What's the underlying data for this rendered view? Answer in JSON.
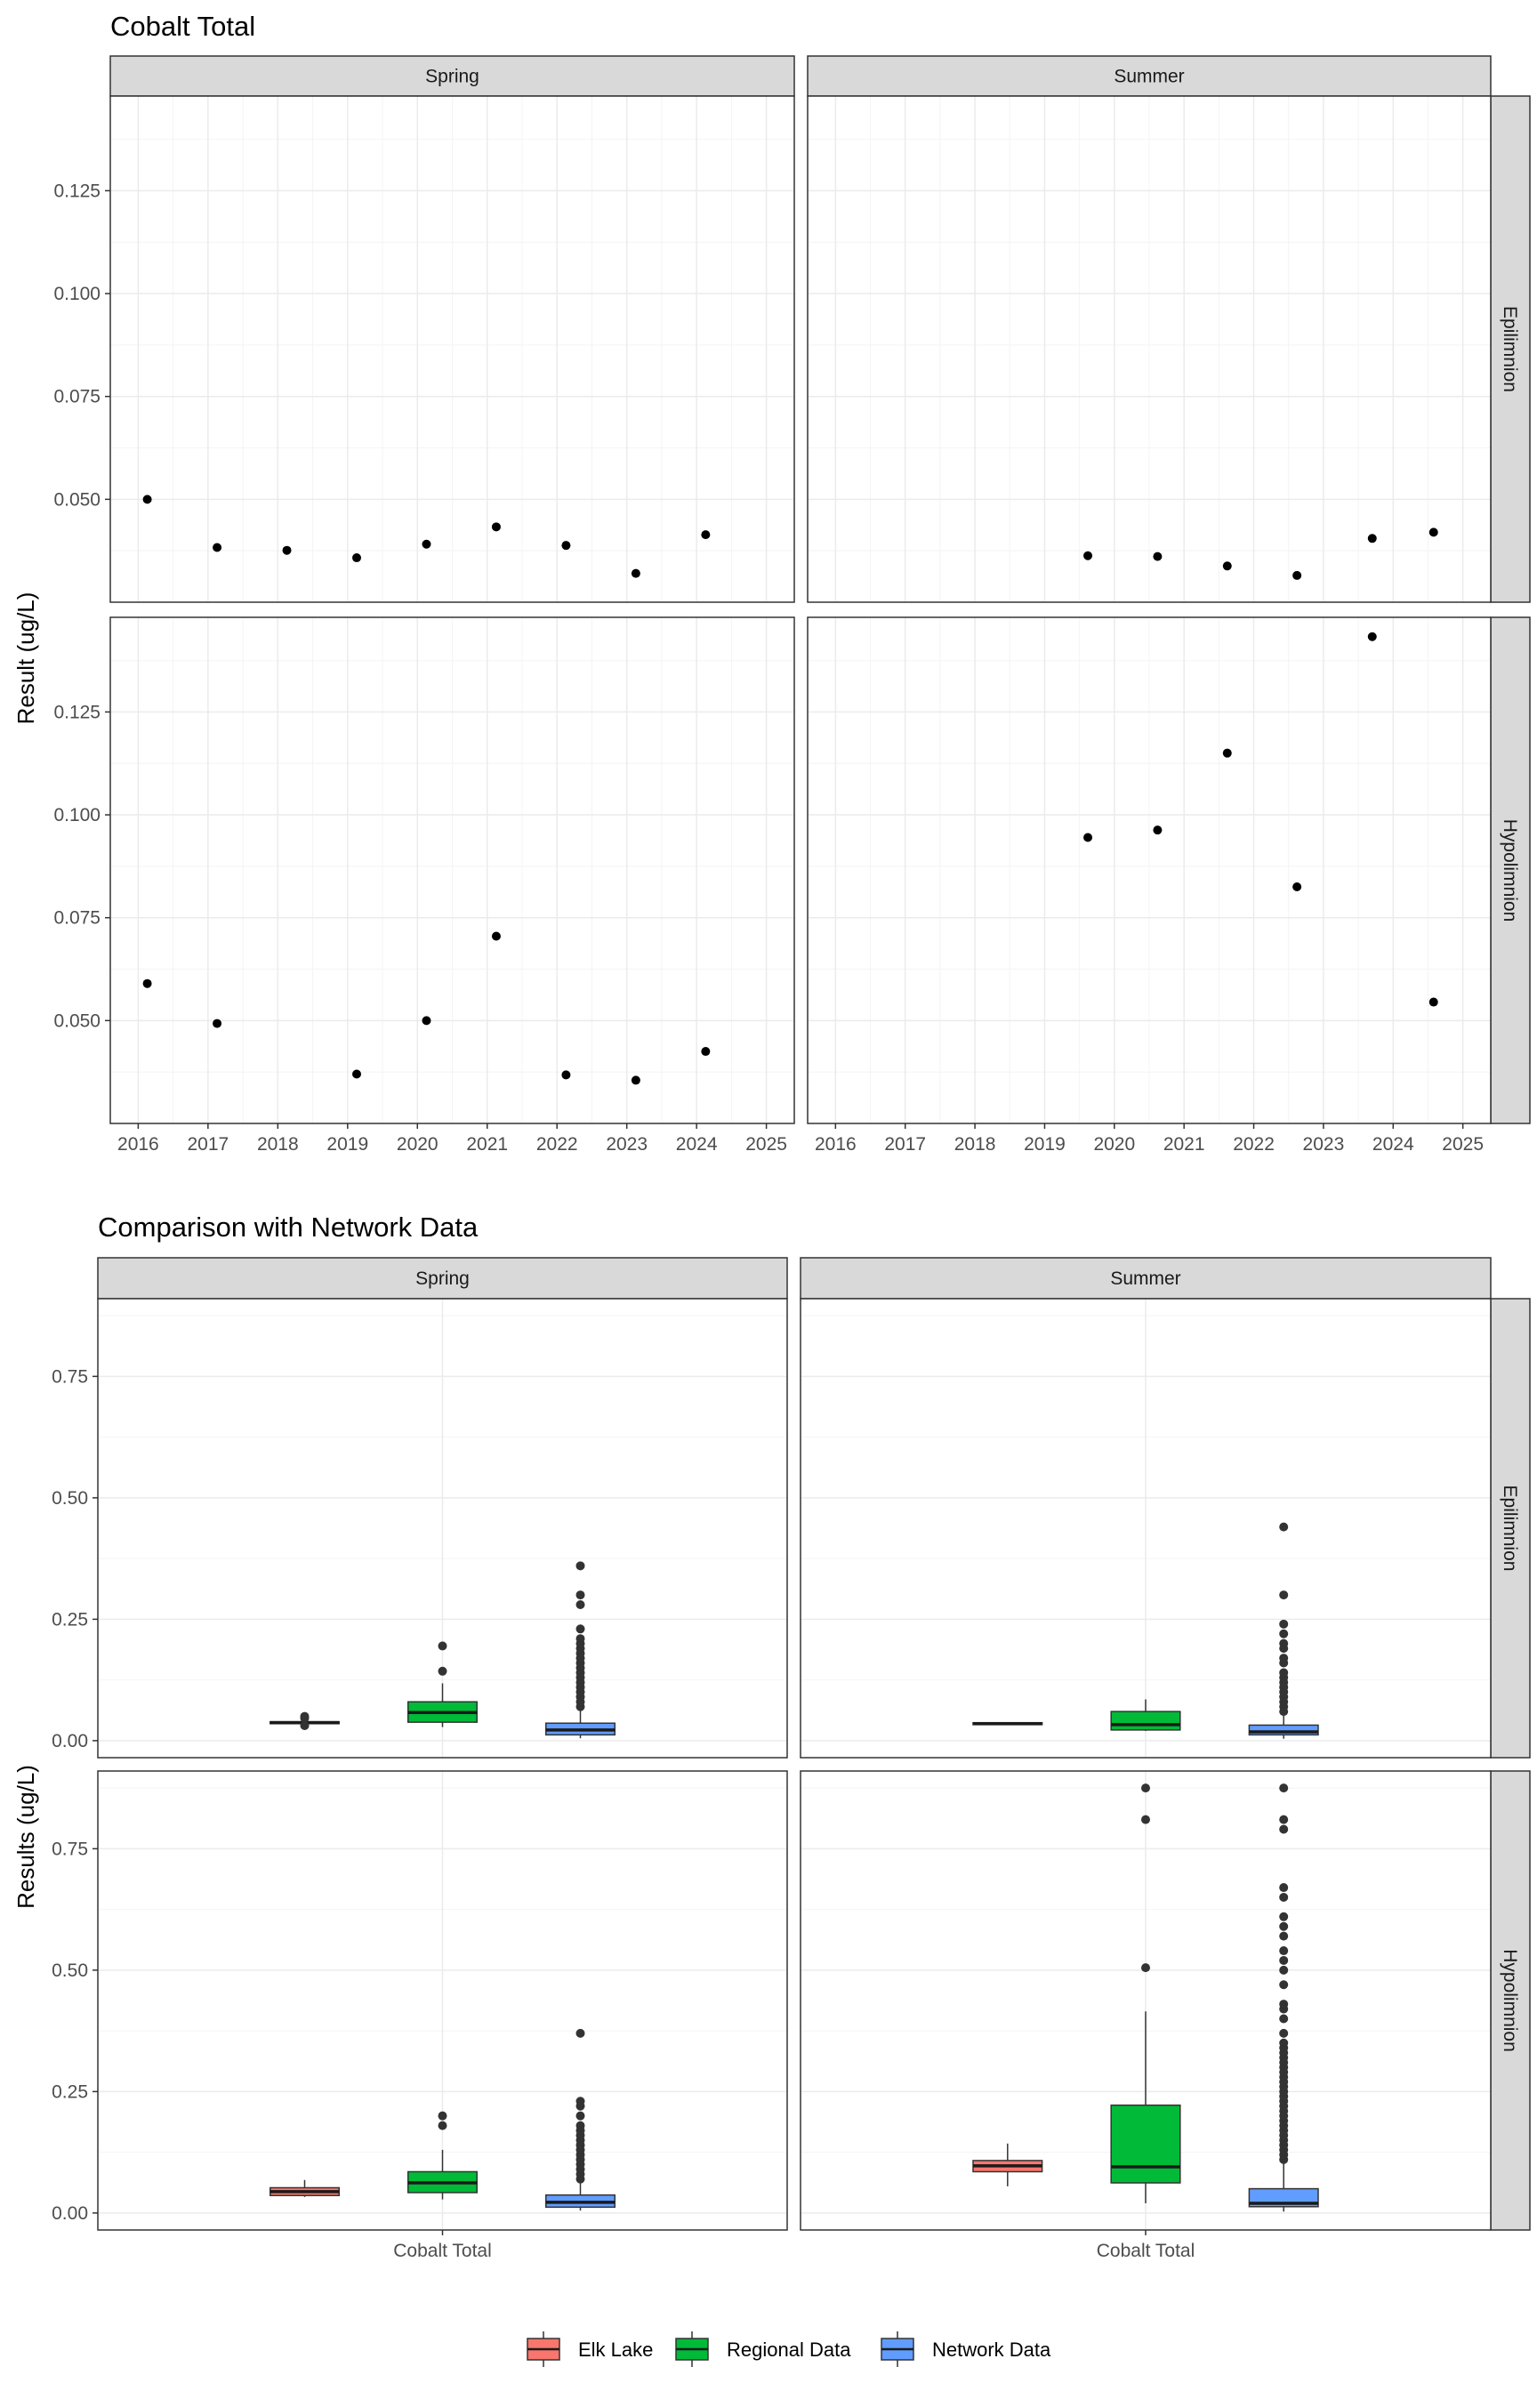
{
  "chart_data": [
    {
      "type": "scatter",
      "title": "Cobalt Total",
      "ylabel": "Result (ug/L)",
      "xlabel": "",
      "facet_columns": [
        "Spring",
        "Summer"
      ],
      "facet_rows": [
        "Epilimnion",
        "Hypolimnion"
      ],
      "x_ticks": [
        "2016",
        "2017",
        "2018",
        "2019",
        "2020",
        "2021",
        "2022",
        "2023",
        "2024",
        "2025"
      ],
      "y_ticks": [
        "0.050",
        "0.075",
        "0.100",
        "0.125"
      ],
      "x_range": [
        2015.6,
        2025.4
      ],
      "y_range": [
        0.025,
        0.148
      ],
      "grid": true,
      "panels": [
        {
          "column": "Spring",
          "row": "Epilimnion",
          "points": [
            [
              2016.13,
              0.05
            ],
            [
              2017.13,
              0.0383
            ],
            [
              2018.13,
              0.0376
            ],
            [
              2019.13,
              0.0358
            ],
            [
              2020.13,
              0.0391
            ],
            [
              2021.13,
              0.0433
            ],
            [
              2022.13,
              0.0388
            ],
            [
              2023.13,
              0.032
            ],
            [
              2024.13,
              0.0414
            ]
          ]
        },
        {
          "column": "Summer",
          "row": "Epilimnion",
          "points": [
            [
              2019.62,
              0.0363
            ],
            [
              2020.62,
              0.0361
            ],
            [
              2021.62,
              0.0338
            ],
            [
              2022.62,
              0.0315
            ],
            [
              2023.7,
              0.0405
            ],
            [
              2024.58,
              0.042
            ]
          ]
        },
        {
          "column": "Spring",
          "row": "Hypolimnion",
          "points": [
            [
              2016.13,
              0.059
            ],
            [
              2017.13,
              0.0493
            ],
            [
              2019.13,
              0.037
            ],
            [
              2020.13,
              0.05
            ],
            [
              2021.13,
              0.0705
            ],
            [
              2022.13,
              0.0368
            ],
            [
              2023.13,
              0.0355
            ],
            [
              2024.13,
              0.0425
            ]
          ]
        },
        {
          "column": "Summer",
          "row": "Hypolimnion",
          "points": [
            [
              2019.62,
              0.0945
            ],
            [
              2020.62,
              0.0963
            ],
            [
              2021.62,
              0.115
            ],
            [
              2022.62,
              0.0825
            ],
            [
              2023.7,
              0.1433
            ],
            [
              2024.58,
              0.0545
            ]
          ]
        }
      ]
    },
    {
      "type": "box",
      "title": "Comparison with Network Data",
      "ylabel": "Results (ug/L)",
      "xlabel": "",
      "facet_columns": [
        "Spring",
        "Summer"
      ],
      "facet_rows": [
        "Epilimnion",
        "Hypolimnion"
      ],
      "x_category": "Cobalt Total",
      "y_ticks": [
        "0.00",
        "0.25",
        "0.50",
        "0.75"
      ],
      "y_range": [
        -0.035,
        0.91
      ],
      "grid": true,
      "legend": {
        "position": "bottom",
        "items": [
          {
            "name": "Elk Lake",
            "color": "#F8766D"
          },
          {
            "name": "Regional Data",
            "color": "#00BA38"
          },
          {
            "name": "Network Data",
            "color": "#619CFF"
          }
        ]
      },
      "panels": [
        {
          "column": "Spring",
          "row": "Epilimnion",
          "boxes": [
            {
              "series": "Elk Lake",
              "min": 0.034,
              "q1": 0.035,
              "median": 0.037,
              "q3": 0.039,
              "max": 0.041,
              "outliers": [
                0.031,
                0.046,
                0.05
              ]
            },
            {
              "series": "Regional Data",
              "min": 0.028,
              "q1": 0.038,
              "median": 0.058,
              "q3": 0.08,
              "max": 0.118,
              "outliers": [
                0.143,
                0.195
              ]
            },
            {
              "series": "Network Data",
              "min": 0.005,
              "q1": 0.012,
              "median": 0.022,
              "q3": 0.036,
              "max": 0.062,
              "outliers": [
                0.07,
                0.08,
                0.09,
                0.1,
                0.11,
                0.12,
                0.13,
                0.14,
                0.15,
                0.16,
                0.17,
                0.18,
                0.19,
                0.2,
                0.21,
                0.23,
                0.28,
                0.3,
                0.36
              ]
            }
          ]
        },
        {
          "column": "Summer",
          "row": "Epilimnion",
          "boxes": [
            {
              "series": "Elk Lake",
              "min": 0.032,
              "q1": 0.033,
              "median": 0.035,
              "q3": 0.037,
              "max": 0.038,
              "outliers": []
            },
            {
              "series": "Regional Data",
              "min": 0.02,
              "q1": 0.022,
              "median": 0.033,
              "q3": 0.06,
              "max": 0.085,
              "outliers": []
            },
            {
              "series": "Network Data",
              "min": 0.004,
              "q1": 0.012,
              "median": 0.018,
              "q3": 0.032,
              "max": 0.052,
              "outliers": [
                0.06,
                0.07,
                0.08,
                0.09,
                0.1,
                0.11,
                0.12,
                0.13,
                0.14,
                0.16,
                0.17,
                0.19,
                0.2,
                0.22,
                0.24,
                0.3,
                0.44
              ]
            }
          ]
        },
        {
          "column": "Spring",
          "row": "Hypolimnion",
          "boxes": [
            {
              "series": "Elk Lake",
              "min": 0.033,
              "q1": 0.036,
              "median": 0.044,
              "q3": 0.052,
              "max": 0.068,
              "outliers": []
            },
            {
              "series": "Regional Data",
              "min": 0.028,
              "q1": 0.042,
              "median": 0.062,
              "q3": 0.085,
              "max": 0.13,
              "outliers": [
                0.18,
                0.2
              ]
            },
            {
              "series": "Network Data",
              "min": 0.005,
              "q1": 0.012,
              "median": 0.022,
              "q3": 0.037,
              "max": 0.065,
              "outliers": [
                0.07,
                0.08,
                0.09,
                0.1,
                0.11,
                0.12,
                0.13,
                0.14,
                0.15,
                0.16,
                0.17,
                0.18,
                0.2,
                0.22,
                0.23,
                0.37
              ]
            }
          ]
        },
        {
          "column": "Summer",
          "row": "Hypolimnion",
          "boxes": [
            {
              "series": "Elk Lake",
              "min": 0.055,
              "q1": 0.085,
              "median": 0.097,
              "q3": 0.108,
              "max": 0.143,
              "outliers": []
            },
            {
              "series": "Regional Data",
              "min": 0.02,
              "q1": 0.062,
              "median": 0.095,
              "q3": 0.222,
              "max": 0.415,
              "outliers": [
                0.505,
                0.81,
                0.875
              ]
            },
            {
              "series": "Network Data",
              "min": 0.003,
              "q1": 0.013,
              "median": 0.02,
              "q3": 0.05,
              "max": 0.105,
              "outliers": [
                0.11,
                0.12,
                0.13,
                0.14,
                0.15,
                0.16,
                0.17,
                0.18,
                0.19,
                0.2,
                0.21,
                0.22,
                0.23,
                0.24,
                0.25,
                0.26,
                0.27,
                0.28,
                0.29,
                0.3,
                0.31,
                0.32,
                0.33,
                0.34,
                0.35,
                0.37,
                0.4,
                0.42,
                0.43,
                0.47,
                0.5,
                0.52,
                0.54,
                0.57,
                0.59,
                0.61,
                0.65,
                0.67,
                0.79,
                0.81,
                0.875
              ]
            }
          ]
        }
      ]
    }
  ]
}
